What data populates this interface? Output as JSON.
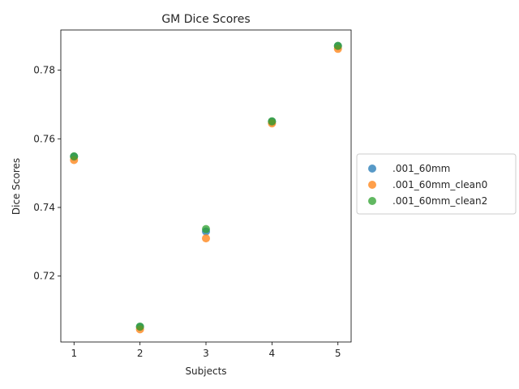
{
  "chart_data": {
    "type": "scatter",
    "title": "GM Dice Scores",
    "xlabel": "Subjects",
    "ylabel": "Dice Scores",
    "xlim": [
      0.8,
      5.2
    ],
    "ylim": [
      0.7008,
      0.7917
    ],
    "xticks": [
      1,
      2,
      3,
      4,
      5
    ],
    "yticks": [
      0.72,
      0.74,
      0.76,
      0.78
    ],
    "xtick_labels": [
      "1",
      "2",
      "3",
      "4",
      "5"
    ],
    "ytick_labels": [
      "0.72",
      "0.74",
      "0.76",
      "0.78"
    ],
    "grid": false,
    "legend_position": "outside-right",
    "series": [
      {
        "name": ".001_60mm",
        "color": "#1f77b4",
        "x": [
          1,
          2,
          3,
          4,
          5
        ],
        "y": [
          0.7548,
          0.7052,
          0.733,
          0.765,
          0.787
        ]
      },
      {
        "name": ".001_60mm_clean0",
        "color": "#ff7f0e",
        "x": [
          1,
          2,
          3,
          4,
          5
        ],
        "y": [
          0.7538,
          0.7045,
          0.731,
          0.7645,
          0.7862
        ]
      },
      {
        "name": ".001_60mm_clean2",
        "color": "#2ca02c",
        "x": [
          1,
          2,
          3,
          4,
          5
        ],
        "y": [
          0.7549,
          0.7053,
          0.7337,
          0.7651,
          0.7871
        ]
      }
    ]
  }
}
